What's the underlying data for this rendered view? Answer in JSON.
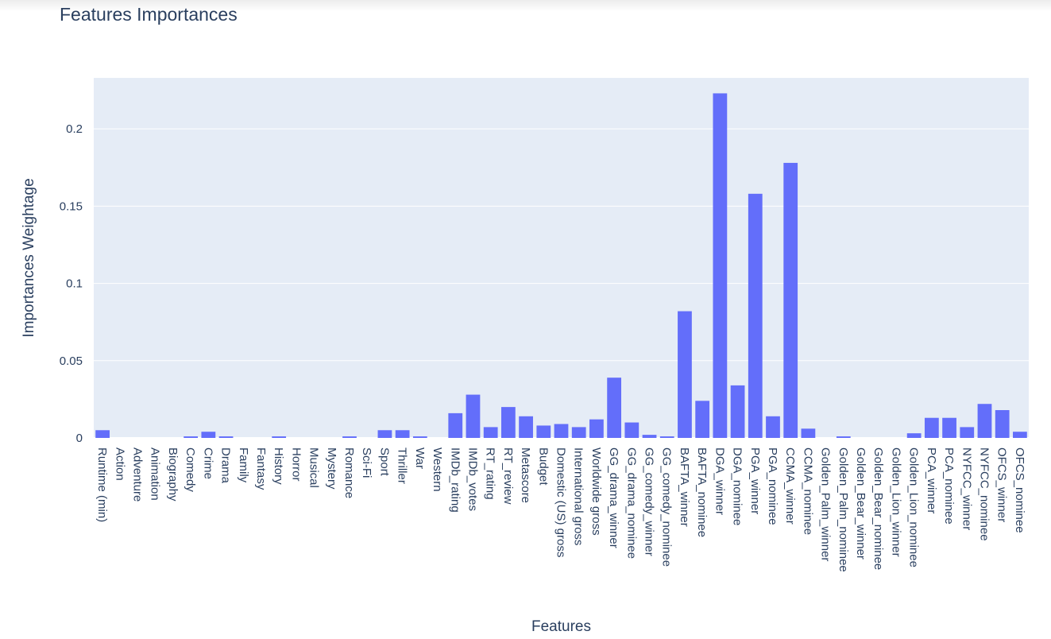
{
  "chart_data": {
    "type": "bar",
    "title": "Features Importances",
    "xlabel": "Features",
    "ylabel": "Importances Weightage",
    "ylim": [
      0,
      0.233
    ],
    "yticks": [
      0,
      0.05,
      0.1,
      0.15,
      0.2
    ],
    "ytick_labels": [
      "0",
      "0.05",
      "0.1",
      "0.15",
      "0.2"
    ],
    "grid": true,
    "colors": {
      "bar": "#636efa",
      "plot_bg": "#e5ecf6",
      "grid": "#ffffff",
      "text": "#2a3f5f"
    },
    "categories": [
      "Runtime (min)",
      "Action",
      "Adventure",
      "Animation",
      "Biography",
      "Comedy",
      "Crime",
      "Drama",
      "Family",
      "Fantasy",
      "History",
      "Horror",
      "Musical",
      "Mystery",
      "Romance",
      "Sci-Fi",
      "Sport",
      "Thriller",
      "War",
      "Western",
      "IMDb_rating",
      "IMDb_votes",
      "RT_rating",
      "RT_review",
      "Metascore",
      "Budget",
      "Domestic (US) gross",
      "International gross",
      "Worldwide gross",
      "GG_drama_winner",
      "GG_drama_nominee",
      "GG_comedy_winner",
      "GG_comedy_nominee",
      "BAFTA_winner",
      "BAFTA_nominee",
      "DGA_winner",
      "DGA_nominee",
      "PGA_winner",
      "PGA_nominee",
      "CCMA_winner",
      "CCMA_nominee",
      "Golden_Palm_winner",
      "Golden_Palm_nominee",
      "Golden_Bear_winner",
      "Golden_Bear_nominee",
      "Golden_Lion_winner",
      "Golden_Lion_nominee",
      "PCA_winner",
      "PCA_nominee",
      "NYFCC_winner",
      "NYFCC_nominee",
      "OFCS_winner",
      "OFCS_nominee"
    ],
    "values": [
      0.005,
      0,
      0,
      0,
      0,
      0.001,
      0.004,
      0.001,
      0,
      0,
      0.001,
      0,
      0,
      0,
      0.001,
      0,
      0.005,
      0.005,
      0.001,
      0,
      0.016,
      0.028,
      0.007,
      0.02,
      0.014,
      0.008,
      0.009,
      0.007,
      0.012,
      0.039,
      0.01,
      0.002,
      0.001,
      0.082,
      0.024,
      0.223,
      0.034,
      0.158,
      0.014,
      0.178,
      0.006,
      0,
      0.001,
      0,
      0,
      0,
      0.003,
      0.013,
      0.013,
      0.007,
      0.022,
      0.018,
      0.004
    ]
  }
}
